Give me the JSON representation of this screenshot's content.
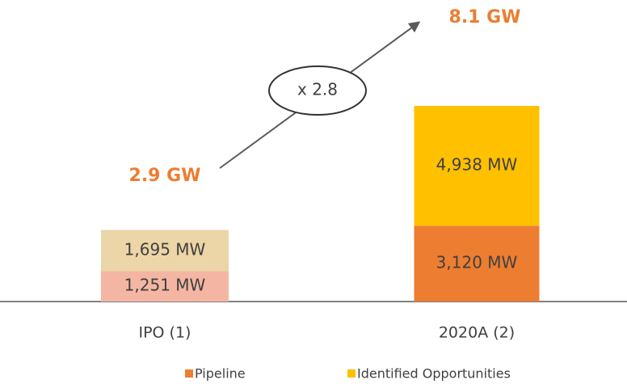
{
  "chart_data": {
    "type": "stacked_bar",
    "categories": [
      "IPO (1)",
      "2020A (2)"
    ],
    "series": [
      {
        "name": "Pipeline",
        "color": "#ed7d31",
        "colors": [
          "#f4b6a2",
          "#ed7d31"
        ],
        "values": [
          1251,
          3120
        ],
        "value_labels": [
          "1,251 MW",
          "3,120 MW"
        ]
      },
      {
        "name": "Identified Opportunities",
        "color": "#ffc000",
        "colors": [
          "#ecd5a6",
          "#ffc000"
        ],
        "values": [
          1695,
          4938
        ],
        "value_labels": [
          "1,695 MW",
          "4,938 MW"
        ]
      }
    ],
    "total_labels": [
      "2.9 GW",
      "8.1 GW"
    ],
    "growth_label": "x 2.8",
    "legend": "bottom"
  }
}
